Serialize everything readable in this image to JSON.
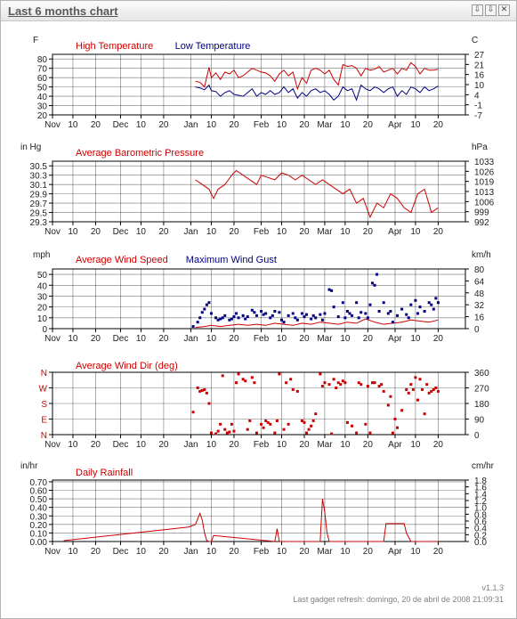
{
  "window": {
    "title": "Last 6 months chart",
    "buttons": [
      {
        "name": "collapse-button",
        "glyph": "⇩"
      },
      {
        "name": "dock-button",
        "glyph": "⇩"
      },
      {
        "name": "close-button",
        "glyph": "✕"
      }
    ]
  },
  "footer": {
    "version": "v1.1.3",
    "refresh": "Last gadget refresh: domingo, 20 de abril de 2008 21:09:31"
  },
  "colors": {
    "red": "#cc0000",
    "blue": "#000080",
    "grid": "#000000"
  },
  "x_axis": {
    "ticks": [
      "Nov",
      "10",
      "20",
      "Dec",
      "10",
      "20",
      "Jan",
      "10",
      "20",
      "Feb",
      "10",
      "20",
      "Mar",
      "10",
      "20",
      "Apr",
      "10",
      "20"
    ],
    "tick_days": [
      0,
      9,
      19,
      30,
      39,
      49,
      61,
      70,
      80,
      92,
      101,
      111,
      120,
      129,
      139,
      151,
      160,
      170
    ],
    "range": [
      0,
      182
    ]
  },
  "chart_data": [
    {
      "type": "line",
      "left_unit": "F",
      "right_unit": "C",
      "left_ticks": [
        "80",
        "70",
        "60",
        "50",
        "40",
        "30",
        "20"
      ],
      "left_tick_values": [
        80,
        70,
        60,
        50,
        40,
        30,
        20
      ],
      "right_ticks": [
        "27",
        "21",
        "16",
        "10",
        "4",
        "-1",
        "-7"
      ],
      "ylim": [
        20,
        85
      ],
      "series": [
        {
          "name": "High Temperature",
          "color": "red",
          "x": [
            63,
            65,
            67,
            69,
            70,
            72,
            74,
            76,
            78,
            80,
            82,
            84,
            86,
            88,
            90,
            92,
            94,
            96,
            98,
            100,
            102,
            104,
            106,
            108,
            110,
            112,
            114,
            116,
            118,
            120,
            122,
            124,
            126,
            128,
            130,
            132,
            134,
            136,
            138,
            140,
            142,
            144,
            146,
            148,
            150,
            152,
            154,
            156,
            158,
            160,
            162,
            164,
            166,
            168,
            170
          ],
          "y": [
            56,
            55,
            50,
            71,
            60,
            65,
            58,
            66,
            64,
            68,
            60,
            62,
            66,
            70,
            68,
            66,
            65,
            62,
            56,
            64,
            68,
            62,
            66,
            48,
            60,
            54,
            68,
            70,
            68,
            64,
            68,
            58,
            52,
            74,
            72,
            73,
            70,
            62,
            70,
            68,
            69,
            72,
            66,
            68,
            70,
            64,
            70,
            68,
            76,
            72,
            64,
            70,
            68,
            68,
            69
          ]
        },
        {
          "name": "Low Temperature",
          "color": "blue",
          "x": [
            63,
            65,
            67,
            69,
            70,
            72,
            74,
            76,
            78,
            80,
            82,
            84,
            86,
            88,
            90,
            92,
            94,
            96,
            98,
            100,
            102,
            104,
            106,
            108,
            110,
            112,
            114,
            116,
            118,
            120,
            122,
            124,
            126,
            128,
            130,
            132,
            134,
            136,
            138,
            140,
            142,
            144,
            146,
            148,
            150,
            152,
            154,
            156,
            158,
            160,
            162,
            164,
            166,
            168,
            170
          ],
          "y": [
            50,
            49,
            47,
            52,
            46,
            45,
            40,
            44,
            46,
            42,
            41,
            40,
            44,
            48,
            40,
            44,
            42,
            46,
            42,
            44,
            50,
            44,
            48,
            38,
            44,
            40,
            46,
            48,
            44,
            46,
            42,
            36,
            40,
            50,
            46,
            48,
            36,
            52,
            48,
            46,
            50,
            48,
            44,
            48,
            50,
            40,
            46,
            42,
            50,
            48,
            44,
            50,
            46,
            48,
            51
          ]
        }
      ]
    },
    {
      "type": "line",
      "left_unit": "in Hg",
      "right_unit": "hPa",
      "left_ticks": [
        "30.5",
        "30.3",
        "30.1",
        "29.9",
        "29.7",
        "29.5",
        "29.3"
      ],
      "left_tick_values": [
        30.5,
        30.3,
        30.1,
        29.9,
        29.7,
        29.5,
        29.3
      ],
      "right_ticks": [
        "1033",
        "1026",
        "1019",
        "1013",
        "1006",
        "999",
        "992"
      ],
      "ylim": [
        29.3,
        30.6
      ],
      "series": [
        {
          "name": "Average Barometric Pressure",
          "color": "red",
          "x": [
            63,
            66,
            69,
            71,
            73,
            76,
            79,
            81,
            84,
            87,
            90,
            92,
            95,
            98,
            101,
            104,
            107,
            110,
            113,
            116,
            119,
            122,
            125,
            128,
            131,
            134,
            137,
            140,
            143,
            146,
            149,
            152,
            155,
            158,
            161,
            164,
            167,
            170
          ],
          "y": [
            30.2,
            30.1,
            30.0,
            29.8,
            30.0,
            30.1,
            30.3,
            30.4,
            30.3,
            30.2,
            30.1,
            30.3,
            30.25,
            30.2,
            30.35,
            30.3,
            30.2,
            30.3,
            30.2,
            30.1,
            30.2,
            30.1,
            30.0,
            29.9,
            30.0,
            29.7,
            29.8,
            29.4,
            29.7,
            29.6,
            29.9,
            29.8,
            29.6,
            29.5,
            29.9,
            30.0,
            29.5,
            29.6
          ]
        }
      ]
    },
    {
      "type": "scatter",
      "left_unit": "mph",
      "right_unit": "km/h",
      "left_ticks": [
        "50",
        "40",
        "30",
        "20",
        "10",
        "0"
      ],
      "left_tick_values": [
        50,
        40,
        30,
        20,
        10,
        0
      ],
      "right_ticks": [
        "80",
        "64",
        "48",
        "32",
        "16",
        "0"
      ],
      "ylim": [
        0,
        55
      ],
      "series": [
        {
          "name": "Average Wind Speed",
          "color": "red",
          "x": [
            63,
            67,
            70,
            74,
            78,
            82,
            86,
            90,
            94,
            98,
            102,
            106,
            110,
            114,
            118,
            122,
            126,
            130,
            134,
            138,
            142,
            146,
            150,
            154,
            158,
            162,
            166,
            170
          ],
          "y": [
            1,
            2,
            3,
            2,
            3,
            4,
            3,
            4,
            3,
            5,
            4,
            3,
            5,
            4,
            6,
            5,
            4,
            6,
            5,
            9,
            6,
            4,
            5,
            6,
            8,
            7,
            6,
            8
          ]
        },
        {
          "name": "Maximum Wind Gust",
          "color": "blue",
          "x": [
            62,
            64,
            65,
            66,
            67,
            68,
            69,
            70,
            72,
            73,
            74,
            75,
            76,
            78,
            79,
            80,
            81,
            82,
            84,
            85,
            86,
            88,
            89,
            90,
            92,
            93,
            94,
            96,
            97,
            98,
            100,
            101,
            102,
            104,
            106,
            107,
            108,
            110,
            111,
            112,
            114,
            115,
            116,
            118,
            119,
            120,
            122,
            123,
            124,
            126,
            128,
            129,
            130,
            131,
            132,
            134,
            135,
            136,
            138,
            139,
            140,
            141,
            142,
            143,
            144,
            146,
            148,
            149,
            150,
            152,
            154,
            156,
            157,
            158,
            160,
            161,
            162,
            164,
            166,
            167,
            168,
            169,
            170
          ],
          "y": [
            2,
            6,
            10,
            15,
            18,
            22,
            24,
            14,
            10,
            8,
            9,
            10,
            12,
            8,
            9,
            11,
            14,
            10,
            12,
            9,
            11,
            17,
            15,
            12,
            16,
            13,
            14,
            10,
            12,
            16,
            15,
            8,
            6,
            12,
            14,
            10,
            8,
            14,
            11,
            13,
            9,
            12,
            10,
            13,
            8,
            14,
            36,
            35,
            20,
            11,
            24,
            10,
            16,
            14,
            12,
            24,
            10,
            15,
            14,
            10,
            22,
            42,
            40,
            50,
            16,
            24,
            14,
            16,
            6,
            12,
            18,
            13,
            10,
            22,
            26,
            14,
            20,
            16,
            24,
            22,
            18,
            28,
            24
          ]
        }
      ]
    },
    {
      "type": "scatter",
      "left_unit": "",
      "right_unit": "",
      "left_ticks": [
        "N",
        "W",
        "S",
        "E",
        "N"
      ],
      "left_tick_values": [
        360,
        270,
        180,
        90,
        0
      ],
      "right_ticks": [
        "360",
        "270",
        "180",
        "90",
        "0"
      ],
      "ylim": [
        0,
        360
      ],
      "series": [
        {
          "name": "Average Wind Dir (deg)",
          "color": "red",
          "x": [
            62,
            64,
            65,
            66,
            67,
            68,
            69,
            70,
            72,
            73,
            74,
            75,
            76,
            77,
            78,
            79,
            80,
            81,
            82,
            84,
            85,
            86,
            87,
            88,
            89,
            90,
            92,
            93,
            94,
            95,
            96,
            98,
            99,
            100,
            102,
            103,
            104,
            105,
            106,
            108,
            110,
            111,
            112,
            113,
            114,
            115,
            116,
            118,
            119,
            120,
            122,
            123,
            124,
            125,
            126,
            127,
            128,
            129,
            130,
            132,
            134,
            135,
            136,
            138,
            139,
            140,
            141,
            142,
            144,
            145,
            146,
            148,
            149,
            150,
            151,
            152,
            154,
            156,
            157,
            158,
            159,
            160,
            161,
            162,
            163,
            164,
            165,
            166,
            167,
            168,
            169,
            170
          ],
          "y": [
            130,
            270,
            250,
            255,
            260,
            240,
            180,
            10,
            5,
            20,
            60,
            340,
            30,
            10,
            15,
            60,
            20,
            300,
            350,
            320,
            310,
            30,
            80,
            330,
            300,
            10,
            60,
            40,
            80,
            70,
            60,
            10,
            80,
            350,
            30,
            300,
            60,
            320,
            260,
            250,
            80,
            70,
            10,
            30,
            50,
            80,
            120,
            350,
            280,
            300,
            290,
            5,
            320,
            270,
            300,
            290,
            310,
            300,
            70,
            50,
            10,
            300,
            290,
            60,
            280,
            10,
            300,
            300,
            280,
            290,
            250,
            170,
            220,
            10,
            90,
            40,
            140,
            260,
            240,
            290,
            260,
            330,
            200,
            320,
            260,
            120,
            290,
            240,
            250,
            260,
            270,
            250
          ]
        }
      ]
    },
    {
      "type": "line",
      "left_unit": "in/hr",
      "right_unit": "cm/hr",
      "left_ticks": [
        "0.70",
        "0.60",
        "0.50",
        "0.40",
        "0.30",
        "0.20",
        "0.10",
        "0.00"
      ],
      "left_tick_values": [
        0.7,
        0.6,
        0.5,
        0.4,
        0.3,
        0.2,
        0.1,
        0.0
      ],
      "right_ticks": [
        "1.8",
        "1.6",
        "1.4",
        "1.2",
        "1.0",
        "0.8",
        "0.6",
        "0.4",
        "0.2",
        "0.0"
      ],
      "ylim": [
        0,
        0.72
      ],
      "series": [
        {
          "name": "Daily Rainfall",
          "color": "red",
          "x": [
            5,
            60,
            63,
            65,
            66,
            67,
            68,
            69,
            70,
            71,
            98,
            99,
            100,
            118,
            119,
            120,
            121,
            122,
            124,
            146,
            147,
            148,
            155,
            156,
            158,
            160,
            170
          ],
          "y": [
            0.01,
            0.17,
            0.2,
            0.33,
            0.25,
            0.1,
            0.01,
            0.0,
            0.0,
            0.07,
            0.0,
            0.15,
            0.0,
            0.0,
            0.5,
            0.35,
            0.1,
            0.0,
            0.0,
            0.0,
            0.21,
            0.21,
            0.21,
            0.1,
            0.0,
            0.0,
            0.0
          ]
        }
      ]
    }
  ]
}
